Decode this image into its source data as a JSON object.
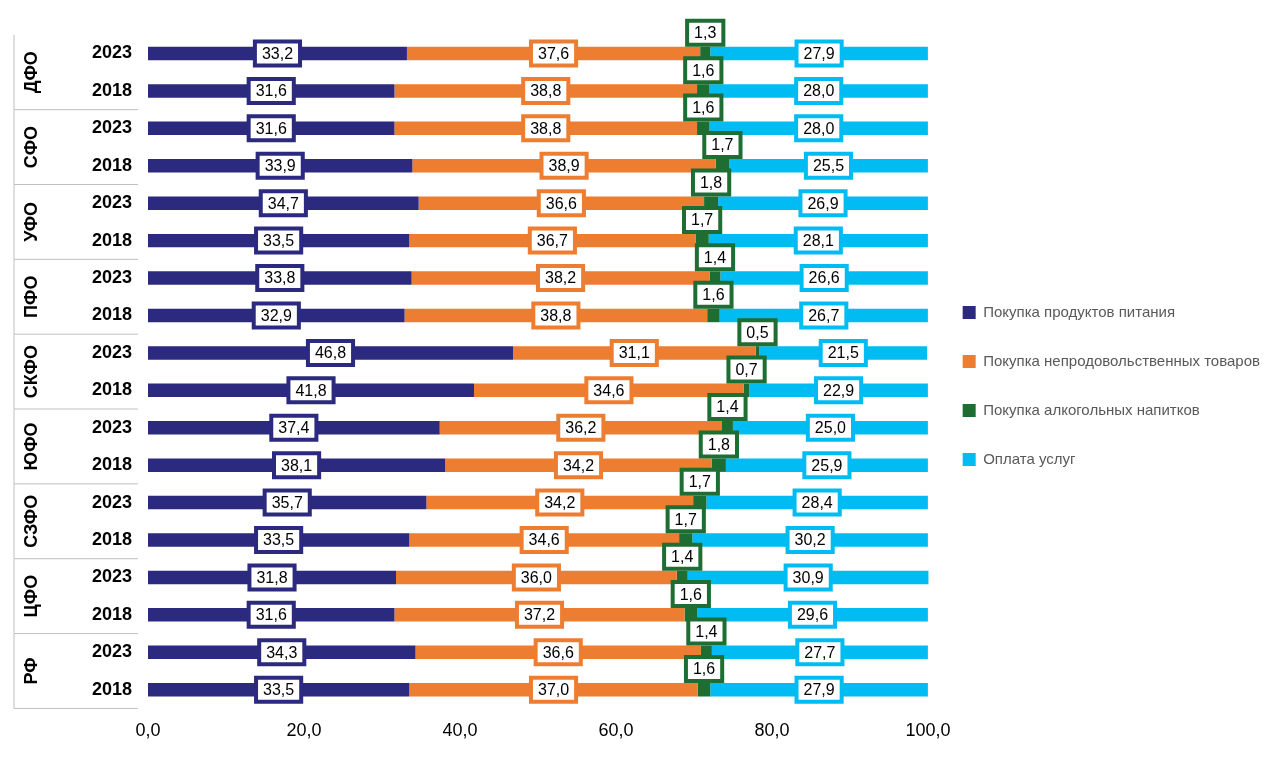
{
  "chart_data": {
    "type": "bar",
    "orientation": "horizontal",
    "stacked": true,
    "categories": [
      "2023",
      "2018",
      "2023",
      "2018",
      "2023",
      "2018",
      "2023",
      "2018",
      "2023",
      "2018",
      "2023",
      "2018",
      "2023",
      "2018",
      "2023",
      "2018",
      "2023",
      "2018"
    ],
    "annotations": [
      "ДФО",
      "СФО",
      "УФО",
      "ПФО",
      "СКФО",
      "ЮФО",
      "СЗФО",
      "ЦФО",
      "РФ"
    ],
    "series": [
      {
        "name": "Покупка продуктов питания",
        "color": "#2b2a7e",
        "values": [
          33.2,
          31.6,
          31.6,
          33.9,
          34.7,
          33.5,
          33.8,
          32.9,
          46.8,
          41.8,
          37.4,
          38.1,
          35.7,
          33.5,
          31.8,
          31.6,
          34.3,
          33.5
        ],
        "value_labels": [
          "33,2",
          "31,6",
          "31,6",
          "33,9",
          "34,7",
          "33,5",
          "33,8",
          "32,9",
          "46,8",
          "41,8",
          "37,4",
          "38,1",
          "35,7",
          "33,5",
          "31,8",
          "31,6",
          "34,3",
          "33,5"
        ]
      },
      {
        "name": "Покупка непродовольственных товаров",
        "color": "#ed7d31",
        "values": [
          37.6,
          38.8,
          38.8,
          38.9,
          36.6,
          36.7,
          38.2,
          38.8,
          31.1,
          34.6,
          36.2,
          34.2,
          34.2,
          34.6,
          36.0,
          37.2,
          36.6,
          37.0
        ],
        "value_labels": [
          "37,6",
          "38,8",
          "38,8",
          "38,9",
          "36,6",
          "36,7",
          "38,2",
          "38,8",
          "31,1",
          "34,6",
          "36,2",
          "34,2",
          "34,2",
          "34,6",
          "36,0",
          "37,2",
          "36,6",
          "37,0"
        ]
      },
      {
        "name": "Покупка алкогольных напитков",
        "color": "#1e6e33",
        "values": [
          1.3,
          1.6,
          1.6,
          1.7,
          1.8,
          1.7,
          1.4,
          1.6,
          0.5,
          0.7,
          1.4,
          1.8,
          1.7,
          1.7,
          1.4,
          1.6,
          1.4,
          1.6
        ],
        "value_labels": [
          "1,3",
          "1,6",
          "1,6",
          "1,7",
          "1,8",
          "1,7",
          "1,4",
          "1,6",
          "0,5",
          "0,7",
          "1,4",
          "1,8",
          "1,7",
          "1,7",
          "1,4",
          "1,6",
          "1,4",
          "1,6"
        ]
      },
      {
        "name": "Оплата услуг",
        "color": "#00bcf2",
        "values": [
          27.9,
          28.0,
          28.0,
          25.5,
          26.9,
          28.1,
          26.6,
          26.7,
          21.5,
          22.9,
          25.0,
          25.9,
          28.4,
          30.2,
          30.9,
          29.6,
          27.7,
          27.9
        ],
        "value_labels": [
          "27,9",
          "28,0",
          "28,0",
          "25,5",
          "26,9",
          "28,1",
          "26,6",
          "26,7",
          "21,5",
          "22,9",
          "25,0",
          "25,9",
          "28,4",
          "30,2",
          "30,9",
          "29,6",
          "27,7",
          "27,9"
        ]
      }
    ],
    "xlim": [
      0,
      100.1
    ],
    "xticks": [
      {
        "value": 0,
        "label": "0,0"
      },
      {
        "value": 20,
        "label": "20,0"
      },
      {
        "value": 40,
        "label": "40,0"
      },
      {
        "value": 60,
        "label": "60,0"
      },
      {
        "value": 80,
        "label": "80,0"
      },
      {
        "value": 100,
        "label": "100,0"
      }
    ],
    "grid": false,
    "legend": "right"
  }
}
